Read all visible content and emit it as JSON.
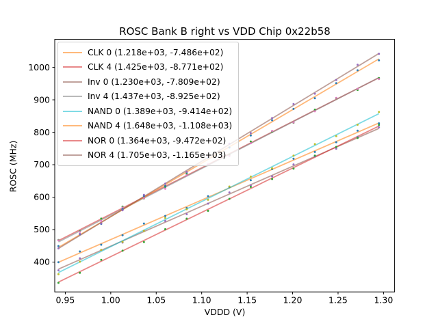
{
  "figure": {
    "title": "ROSC Bank B right vs VDD Chip 0x22b58"
  },
  "chart_data": {
    "type": "scatter",
    "title": "ROSC Bank B right vs VDD Chip 0x22b58",
    "xlabel": "VDDD (V)",
    "ylabel": "ROSC (MHz)",
    "xlim": [
      0.9384,
      1.3122
    ],
    "ylim": [
      308,
      1086.3
    ],
    "x_ticks": [
      0.95,
      1.0,
      1.05,
      1.1,
      1.15,
      1.2,
      1.25,
      1.3
    ],
    "x_tick_labels": [
      "0.95",
      "1.00",
      "1.05",
      "1.10",
      "1.15",
      "1.20",
      "1.25",
      "1.30"
    ],
    "y_ticks": [
      400,
      500,
      600,
      700,
      800,
      900,
      1000
    ],
    "y_tick_labels": [
      "400",
      "500",
      "600",
      "700",
      "800",
      "900",
      "1000"
    ],
    "grid": false,
    "legend_position": "upper left",
    "x_start": 0.9425,
    "x_end": 1.295,
    "n_points": 16,
    "line_opacity": 0.55,
    "series": [
      {
        "name": "CLK 0",
        "label": "CLK 0 (1.218e+03, -7.486e+02)",
        "slope": 1218,
        "intercept": -748.6,
        "line_color": "#ff7f0e",
        "marker_color": "#1f77b4"
      },
      {
        "name": "CLK 4",
        "label": "CLK 4 (1.425e+03, -8.771e+02)",
        "slope": 1425,
        "intercept": -877.1,
        "line_color": "#d62728",
        "marker_color": "#2ca02c"
      },
      {
        "name": "Inv 0",
        "label": "Inv 0 (1.230e+03, -7.809e+02)",
        "slope": 1230,
        "intercept": -780.9,
        "line_color": "#8c564b",
        "marker_color": "#9467bd"
      },
      {
        "name": "Inv 4",
        "label": "Inv 4 (1.437e+03, -8.925e+02)",
        "slope": 1437,
        "intercept": -892.5,
        "line_color": "#7f7f7f",
        "marker_color": "#e377c2"
      },
      {
        "name": "NAND 0",
        "label": "NAND 0 (1.389e+03, -9.414e+02)",
        "slope": 1389,
        "intercept": -941.4,
        "line_color": "#17becf",
        "marker_color": "#bcbd22"
      },
      {
        "name": "NAND 4",
        "label": "NAND 4 (1.648e+03, -1.108e+03)",
        "slope": 1648,
        "intercept": -1108,
        "line_color": "#ff7f0e",
        "marker_color": "#1f77b4"
      },
      {
        "name": "NOR 0",
        "label": "NOR 0 (1.364e+03, -9.472e+02)",
        "slope": 1364,
        "intercept": -947.2,
        "line_color": "#d62728",
        "marker_color": "#2ca02c"
      },
      {
        "name": "NOR 4",
        "label": "NOR 4 (1.705e+03, -1.165e+03)",
        "slope": 1705,
        "intercept": -1165,
        "line_color": "#8c564b",
        "marker_color": "#9467bd"
      }
    ]
  }
}
